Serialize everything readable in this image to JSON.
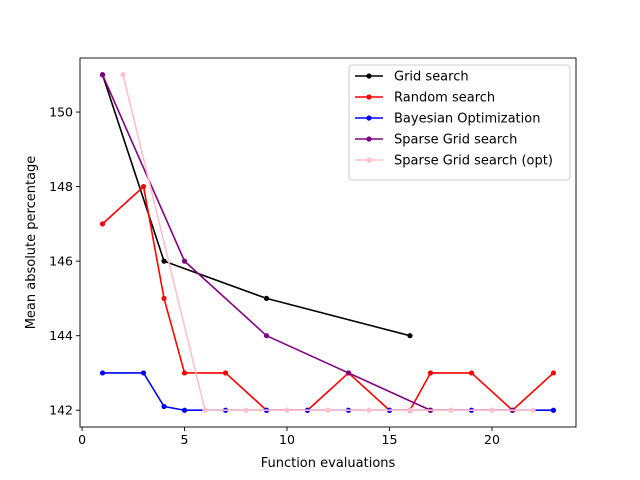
{
  "chart_data": {
    "type": "line",
    "title": "",
    "xlabel": "Function evaluations",
    "ylabel": "Mean absolute percentage",
    "xlim": [
      -0.1,
      24.1
    ],
    "ylim": [
      141.55,
      151.45
    ],
    "x_ticks": [
      0,
      5,
      10,
      15,
      20
    ],
    "y_ticks": [
      142,
      144,
      146,
      148,
      150
    ],
    "grid": false,
    "legend_position": "top-right",
    "series": [
      {
        "name": "Grid search",
        "color": "#000000",
        "x": [
          1,
          4,
          9,
          16
        ],
        "y": [
          151,
          146,
          145,
          144
        ]
      },
      {
        "name": "Random search",
        "color": "#ff0000",
        "x": [
          1,
          3,
          4,
          5,
          7,
          9,
          11,
          13,
          15,
          16,
          17,
          19,
          21,
          23
        ],
        "y": [
          147,
          148,
          145,
          143,
          143,
          142,
          142,
          143,
          142,
          142,
          143,
          143,
          142,
          143
        ]
      },
      {
        "name": "Bayesian Optimization",
        "color": "#0000ff",
        "x": [
          1,
          3,
          4,
          5,
          7,
          9,
          11,
          13,
          15,
          16,
          17,
          19,
          21,
          23
        ],
        "y": [
          143,
          143,
          142.1,
          142,
          142,
          142,
          142,
          142,
          142,
          142,
          142,
          142,
          142,
          142
        ]
      },
      {
        "name": "Sparse Grid search",
        "color": "#800080",
        "x": [
          1,
          5,
          9,
          13,
          17,
          21
        ],
        "y": [
          151,
          146,
          144,
          143,
          142,
          142
        ]
      },
      {
        "name": "Sparse Grid search (opt)",
        "color": "#ffc0cb",
        "x": [
          2,
          6,
          8,
          10,
          12,
          14,
          16,
          18,
          20,
          22
        ],
        "y": [
          151,
          142,
          142,
          142,
          142,
          142,
          142,
          142,
          142,
          142
        ]
      }
    ]
  }
}
